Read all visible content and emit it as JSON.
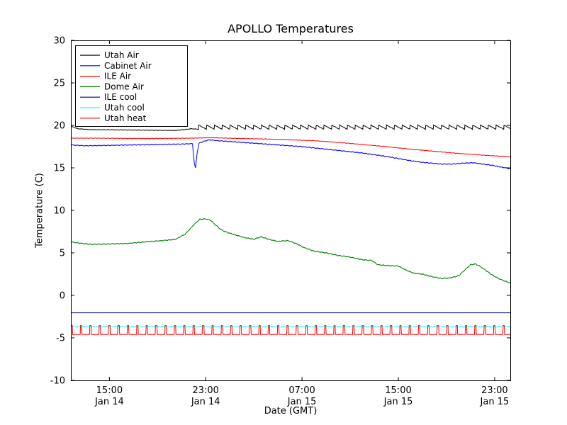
{
  "figure": {
    "background": "#ffffff"
  },
  "chart_data": {
    "type": "line",
    "title": "APOLLO Temperatures",
    "xlabel": "Date (GMT)",
    "ylabel": "Temperature (C)",
    "x_unit": "hours since Jan 14 00:00 GMT",
    "xlim": [
      11.8,
      48.3
    ],
    "ylim": [
      -10,
      30
    ],
    "grid": false,
    "yticks": [
      -10,
      -5,
      0,
      5,
      10,
      15,
      20,
      25,
      30
    ],
    "xticks": [
      {
        "value": 15,
        "line1": "15:00",
        "line2": "Jan 14"
      },
      {
        "value": 23,
        "line1": "23:00",
        "line2": "Jan 14"
      },
      {
        "value": 31,
        "line1": "07:00",
        "line2": "Jan 15"
      },
      {
        "value": 39,
        "line1": "15:00",
        "line2": "Jan 15"
      },
      {
        "value": 47,
        "line1": "23:00",
        "line2": "Jan 15"
      }
    ],
    "legend": {
      "position": "upper-left"
    },
    "series": [
      {
        "name": "Utah Air",
        "color": "#000000",
        "noise": 0.03,
        "oscillation": {
          "type": "sawtooth",
          "from": 22.4,
          "amplitude": 0.5,
          "period": 0.65
        },
        "points": [
          [
            11.8,
            19.9
          ],
          [
            12.4,
            19.6
          ],
          [
            13.5,
            19.5
          ],
          [
            17,
            19.45
          ],
          [
            20.5,
            19.4
          ],
          [
            21.8,
            19.6
          ],
          [
            22.4,
            19.55
          ],
          [
            48.3,
            19.55
          ]
        ]
      },
      {
        "name": "Cabinet Air",
        "color": "#0000ff",
        "noise": 0.05,
        "points": [
          [
            11.8,
            17.7
          ],
          [
            13,
            17.6
          ],
          [
            15,
            17.65
          ],
          [
            17,
            17.7
          ],
          [
            19,
            17.75
          ],
          [
            21,
            17.8
          ],
          [
            21.9,
            17.85
          ],
          [
            22.05,
            15.6
          ],
          [
            22.15,
            14.95
          ],
          [
            22.3,
            16.9
          ],
          [
            22.45,
            17.9
          ],
          [
            22.8,
            18.1
          ],
          [
            23.3,
            18.3
          ],
          [
            24,
            18.2
          ],
          [
            25,
            18.1
          ],
          [
            26,
            18.0
          ],
          [
            27,
            17.9
          ],
          [
            28,
            17.8
          ],
          [
            29,
            17.7
          ],
          [
            30,
            17.6
          ],
          [
            31,
            17.5
          ],
          [
            32,
            17.35
          ],
          [
            33,
            17.2
          ],
          [
            34,
            17.05
          ],
          [
            35,
            16.9
          ],
          [
            36,
            16.75
          ],
          [
            37,
            16.55
          ],
          [
            38,
            16.35
          ],
          [
            39,
            16.1
          ],
          [
            40,
            15.85
          ],
          [
            41,
            15.65
          ],
          [
            41.8,
            15.55
          ],
          [
            42.6,
            15.45
          ],
          [
            43.5,
            15.45
          ],
          [
            44.3,
            15.55
          ],
          [
            45.2,
            15.6
          ],
          [
            46,
            15.45
          ],
          [
            46.8,
            15.3
          ],
          [
            47.5,
            15.1
          ],
          [
            48.3,
            14.9
          ]
        ]
      },
      {
        "name": "ILE Air",
        "color": "#ff0000",
        "noise": 0.03,
        "points": [
          [
            11.8,
            18.5
          ],
          [
            14,
            18.5
          ],
          [
            18,
            18.45
          ],
          [
            22,
            18.5
          ],
          [
            23.5,
            18.55
          ],
          [
            26,
            18.45
          ],
          [
            28,
            18.4
          ],
          [
            30,
            18.3
          ],
          [
            32,
            18.2
          ],
          [
            34,
            18.0
          ],
          [
            36,
            17.75
          ],
          [
            38,
            17.5
          ],
          [
            40,
            17.2
          ],
          [
            42,
            16.95
          ],
          [
            44,
            16.7
          ],
          [
            46,
            16.5
          ],
          [
            48.3,
            16.3
          ]
        ]
      },
      {
        "name": "Dome Air",
        "color": "#008000",
        "noise": 0.06,
        "points": [
          [
            11.8,
            6.3
          ],
          [
            12.5,
            6.15
          ],
          [
            13.5,
            6.0
          ],
          [
            15,
            6.05
          ],
          [
            16.5,
            6.1
          ],
          [
            18,
            6.3
          ],
          [
            19.5,
            6.45
          ],
          [
            20.5,
            6.6
          ],
          [
            21.3,
            7.2
          ],
          [
            22,
            8.3
          ],
          [
            22.5,
            8.95
          ],
          [
            23,
            9.0
          ],
          [
            23.4,
            8.85
          ],
          [
            23.8,
            8.3
          ],
          [
            24.3,
            7.7
          ],
          [
            24.8,
            7.4
          ],
          [
            25.5,
            7.1
          ],
          [
            26.2,
            6.8
          ],
          [
            27,
            6.6
          ],
          [
            27.6,
            6.9
          ],
          [
            28.2,
            6.6
          ],
          [
            29,
            6.35
          ],
          [
            29.8,
            6.45
          ],
          [
            30.5,
            6.1
          ],
          [
            31.2,
            5.6
          ],
          [
            32,
            5.2
          ],
          [
            33,
            5.0
          ],
          [
            34,
            4.7
          ],
          [
            35,
            4.5
          ],
          [
            36,
            4.2
          ],
          [
            36.8,
            4.1
          ],
          [
            37.3,
            3.6
          ],
          [
            38.2,
            3.5
          ],
          [
            39,
            3.45
          ],
          [
            39.6,
            3.0
          ],
          [
            40.3,
            2.6
          ],
          [
            41,
            2.5
          ],
          [
            41.8,
            2.2
          ],
          [
            42.5,
            2.0
          ],
          [
            43.3,
            2.05
          ],
          [
            44,
            2.3
          ],
          [
            44.6,
            3.1
          ],
          [
            45,
            3.6
          ],
          [
            45.4,
            3.7
          ],
          [
            45.8,
            3.4
          ],
          [
            46.3,
            2.9
          ],
          [
            46.8,
            2.4
          ],
          [
            47.3,
            2.0
          ],
          [
            47.8,
            1.7
          ],
          [
            48.3,
            1.45
          ]
        ]
      },
      {
        "name": "ILE cool",
        "color": "#000080",
        "points": [
          [
            11.8,
            -2.05
          ],
          [
            48.3,
            -2.05
          ]
        ]
      },
      {
        "name": "Utah cool",
        "color": "#00ffff",
        "points": [
          [
            11.8,
            -3.7
          ],
          [
            48.3,
            -3.7
          ]
        ]
      },
      {
        "name": "Utah heat",
        "color": "#ff0000",
        "oscillation": {
          "type": "square",
          "from": 11.8,
          "amplitude": 1.05,
          "period": 0.78,
          "duty": 0.17
        },
        "points": [
          [
            11.8,
            -4.6
          ],
          [
            48.3,
            -4.6
          ]
        ]
      }
    ]
  }
}
